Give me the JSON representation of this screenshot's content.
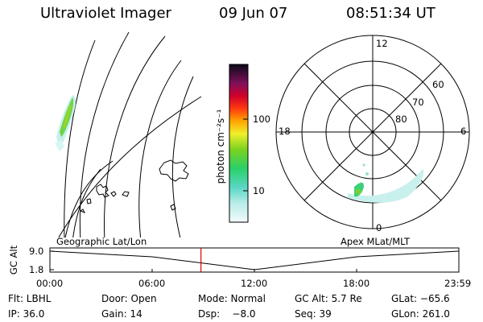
{
  "header": {
    "title": "Ultraviolet Imager",
    "date": "09 Jun 07",
    "time": "08:51:34 UT"
  },
  "colorbar": {
    "ticks": [
      "100",
      "10"
    ],
    "unit_label": "photon cm⁻²s⁻¹"
  },
  "polar_plot": {
    "mlt_labels": [
      "12",
      "18",
      "6",
      "0"
    ],
    "lat_labels": [
      "60",
      "70",
      "80"
    ]
  },
  "panel_labels": {
    "left": "Geographic Lat/Lon",
    "right": "Apex MLat/MLT"
  },
  "timeline": {
    "ylabel": "GC Alt",
    "y_ticks": [
      "9.0",
      "1.8"
    ],
    "x_ticks": [
      "00:00",
      "06:00",
      "12:00",
      "18:00",
      "23:59"
    ],
    "colors": {
      "cursor": "#dd0000",
      "line": "#000000"
    }
  },
  "info": {
    "flt": "Flt: LBHL",
    "door": "Door: Open",
    "mode": "Mode: Normal",
    "gc_alt": "GC Alt: 5.7 Re",
    "glat": "GLat: −65.6",
    "ip": "IP: 36.0",
    "gain": "Gain: 14",
    "dsp": "Dsp:    −8.0",
    "seq": "Seq: 39",
    "glon": "GLon: 261.0"
  },
  "chart_data": {
    "type": "line",
    "ylabel": "GC Alt",
    "x": [
      "00:00",
      "06:00",
      "12:00",
      "18:00",
      "23:59"
    ],
    "y": [
      9.0,
      6.8,
      1.8,
      6.8,
      9.0
    ],
    "cursor_time": "08:51:34",
    "ylim": [
      1.8,
      9.0
    ]
  }
}
